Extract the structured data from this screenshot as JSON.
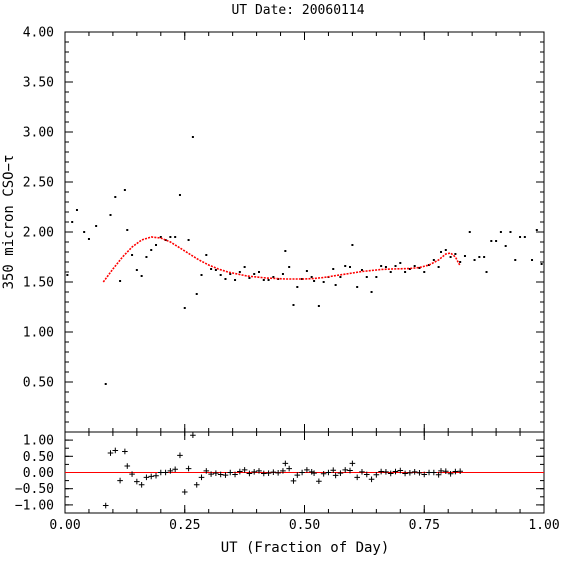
{
  "chart_data": {
    "type": "scatter",
    "title": "UT Date: 20060114",
    "xlabel": "UT (Fraction of Day)",
    "ylabel_top": "350 micron CSO−τ",
    "ylabel_bottom": "",
    "xlim": [
      0,
      1
    ],
    "ylim_top": [
      0,
      4
    ],
    "ylim_bottom": [
      -1.25,
      1.25
    ],
    "x_ticks": [
      "0.00",
      "0.25",
      "0.50",
      "0.75",
      "1.00"
    ],
    "y_ticks_top": [
      "0.50",
      "1.00",
      "1.50",
      "2.00",
      "2.50",
      "3.00",
      "3.50",
      "4.00"
    ],
    "y_ticks_bottom": [
      "−1.00",
      "−0.50",
      "0.00",
      "0.50",
      "1.00"
    ],
    "fit_color": "#ff0000",
    "point_color": "#000000",
    "tau_points": [
      {
        "x": 0.005,
        "y": 1.57
      },
      {
        "x": 0.015,
        "y": 2.1
      },
      {
        "x": 0.025,
        "y": 2.22
      },
      {
        "x": 0.04,
        "y": 2.0
      },
      {
        "x": 0.05,
        "y": 1.93
      },
      {
        "x": 0.065,
        "y": 2.06
      },
      {
        "x": 0.085,
        "y": 0.48
      },
      {
        "x": 0.095,
        "y": 2.17
      },
      {
        "x": 0.105,
        "y": 2.35
      },
      {
        "x": 0.115,
        "y": 1.51
      },
      {
        "x": 0.125,
        "y": 2.42
      },
      {
        "x": 0.13,
        "y": 2.02
      },
      {
        "x": 0.14,
        "y": 1.77
      },
      {
        "x": 0.15,
        "y": 1.62
      },
      {
        "x": 0.16,
        "y": 1.56
      },
      {
        "x": 0.17,
        "y": 1.75
      },
      {
        "x": 0.18,
        "y": 1.82
      },
      {
        "x": 0.19,
        "y": 1.87
      },
      {
        "x": 0.2,
        "y": 1.95
      },
      {
        "x": 0.21,
        "y": 1.92
      },
      {
        "x": 0.22,
        "y": 1.95
      },
      {
        "x": 0.23,
        "y": 1.95
      },
      {
        "x": 0.24,
        "y": 2.37
      },
      {
        "x": 0.25,
        "y": 1.24
      },
      {
        "x": 0.258,
        "y": 1.92
      },
      {
        "x": 0.267,
        "y": 2.95
      },
      {
        "x": 0.275,
        "y": 1.38
      },
      {
        "x": 0.285,
        "y": 1.57
      },
      {
        "x": 0.295,
        "y": 1.77
      },
      {
        "x": 0.305,
        "y": 1.63
      },
      {
        "x": 0.315,
        "y": 1.62
      },
      {
        "x": 0.325,
        "y": 1.57
      },
      {
        "x": 0.335,
        "y": 1.53
      },
      {
        "x": 0.345,
        "y": 1.58
      },
      {
        "x": 0.355,
        "y": 1.52
      },
      {
        "x": 0.365,
        "y": 1.6
      },
      {
        "x": 0.375,
        "y": 1.65
      },
      {
        "x": 0.385,
        "y": 1.54
      },
      {
        "x": 0.395,
        "y": 1.58
      },
      {
        "x": 0.405,
        "y": 1.6
      },
      {
        "x": 0.415,
        "y": 1.52
      },
      {
        "x": 0.425,
        "y": 1.52
      },
      {
        "x": 0.435,
        "y": 1.55
      },
      {
        "x": 0.445,
        "y": 1.53
      },
      {
        "x": 0.455,
        "y": 1.58
      },
      {
        "x": 0.46,
        "y": 1.81
      },
      {
        "x": 0.468,
        "y": 1.65
      },
      {
        "x": 0.477,
        "y": 1.27
      },
      {
        "x": 0.485,
        "y": 1.45
      },
      {
        "x": 0.495,
        "y": 1.53
      },
      {
        "x": 0.505,
        "y": 1.61
      },
      {
        "x": 0.515,
        "y": 1.55
      },
      {
        "x": 0.52,
        "y": 1.51
      },
      {
        "x": 0.53,
        "y": 1.26
      },
      {
        "x": 0.54,
        "y": 1.5
      },
      {
        "x": 0.55,
        "y": 1.55
      },
      {
        "x": 0.56,
        "y": 1.63
      },
      {
        "x": 0.565,
        "y": 1.47
      },
      {
        "x": 0.575,
        "y": 1.55
      },
      {
        "x": 0.585,
        "y": 1.66
      },
      {
        "x": 0.595,
        "y": 1.65
      },
      {
        "x": 0.6,
        "y": 1.87
      },
      {
        "x": 0.61,
        "y": 1.45
      },
      {
        "x": 0.62,
        "y": 1.62
      },
      {
        "x": 0.63,
        "y": 1.55
      },
      {
        "x": 0.64,
        "y": 1.4
      },
      {
        "x": 0.65,
        "y": 1.55
      },
      {
        "x": 0.66,
        "y": 1.66
      },
      {
        "x": 0.67,
        "y": 1.65
      },
      {
        "x": 0.68,
        "y": 1.6
      },
      {
        "x": 0.69,
        "y": 1.66
      },
      {
        "x": 0.7,
        "y": 1.69
      },
      {
        "x": 0.71,
        "y": 1.6
      },
      {
        "x": 0.72,
        "y": 1.63
      },
      {
        "x": 0.73,
        "y": 1.66
      },
      {
        "x": 0.74,
        "y": 1.64
      },
      {
        "x": 0.75,
        "y": 1.6
      },
      {
        "x": 0.76,
        "y": 1.67
      },
      {
        "x": 0.77,
        "y": 1.72
      },
      {
        "x": 0.78,
        "y": 1.65
      },
      {
        "x": 0.785,
        "y": 1.8
      },
      {
        "x": 0.795,
        "y": 1.82
      },
      {
        "x": 0.805,
        "y": 1.75
      },
      {
        "x": 0.815,
        "y": 1.78
      },
      {
        "x": 0.825,
        "y": 1.7
      },
      {
        "x": 0.835,
        "y": 1.76
      },
      {
        "x": 0.845,
        "y": 2.0
      },
      {
        "x": 0.855,
        "y": 1.72
      },
      {
        "x": 0.865,
        "y": 1.75
      },
      {
        "x": 0.875,
        "y": 1.75
      },
      {
        "x": 0.88,
        "y": 1.6
      },
      {
        "x": 0.89,
        "y": 1.91
      },
      {
        "x": 0.9,
        "y": 1.91
      },
      {
        "x": 0.91,
        "y": 2.0
      },
      {
        "x": 0.92,
        "y": 1.86
      },
      {
        "x": 0.93,
        "y": 2.0
      },
      {
        "x": 0.94,
        "y": 1.72
      },
      {
        "x": 0.95,
        "y": 1.95
      },
      {
        "x": 0.96,
        "y": 1.95
      },
      {
        "x": 0.975,
        "y": 1.72
      },
      {
        "x": 0.985,
        "y": 2.02
      },
      {
        "x": 0.995,
        "y": 1.68
      }
    ],
    "fit_curve": [
      {
        "x": 0.08,
        "y": 1.5
      },
      {
        "x": 0.1,
        "y": 1.63
      },
      {
        "x": 0.12,
        "y": 1.75
      },
      {
        "x": 0.14,
        "y": 1.85
      },
      {
        "x": 0.16,
        "y": 1.92
      },
      {
        "x": 0.18,
        "y": 1.95
      },
      {
        "x": 0.2,
        "y": 1.94
      },
      {
        "x": 0.22,
        "y": 1.9
      },
      {
        "x": 0.24,
        "y": 1.84
      },
      {
        "x": 0.26,
        "y": 1.78
      },
      {
        "x": 0.28,
        "y": 1.72
      },
      {
        "x": 0.3,
        "y": 1.67
      },
      {
        "x": 0.32,
        "y": 1.63
      },
      {
        "x": 0.34,
        "y": 1.6
      },
      {
        "x": 0.36,
        "y": 1.58
      },
      {
        "x": 0.38,
        "y": 1.56
      },
      {
        "x": 0.4,
        "y": 1.55
      },
      {
        "x": 0.42,
        "y": 1.54
      },
      {
        "x": 0.44,
        "y": 1.535
      },
      {
        "x": 0.46,
        "y": 1.53
      },
      {
        "x": 0.48,
        "y": 1.53
      },
      {
        "x": 0.5,
        "y": 1.53
      },
      {
        "x": 0.52,
        "y": 1.535
      },
      {
        "x": 0.54,
        "y": 1.545
      },
      {
        "x": 0.56,
        "y": 1.56
      },
      {
        "x": 0.58,
        "y": 1.575
      },
      {
        "x": 0.6,
        "y": 1.59
      },
      {
        "x": 0.62,
        "y": 1.605
      },
      {
        "x": 0.64,
        "y": 1.615
      },
      {
        "x": 0.66,
        "y": 1.625
      },
      {
        "x": 0.68,
        "y": 1.63
      },
      {
        "x": 0.7,
        "y": 1.632
      },
      {
        "x": 0.72,
        "y": 1.635
      },
      {
        "x": 0.74,
        "y": 1.645
      },
      {
        "x": 0.76,
        "y": 1.67
      },
      {
        "x": 0.78,
        "y": 1.72
      },
      {
        "x": 0.795,
        "y": 1.78
      },
      {
        "x": 0.805,
        "y": 1.79
      },
      {
        "x": 0.815,
        "y": 1.75
      },
      {
        "x": 0.825,
        "y": 1.66
      }
    ],
    "residuals": [
      {
        "x": 0.085,
        "y": -1.02
      },
      {
        "x": 0.095,
        "y": 0.6
      },
      {
        "x": 0.105,
        "y": 0.68
      },
      {
        "x": 0.115,
        "y": -0.25
      },
      {
        "x": 0.125,
        "y": 0.65
      },
      {
        "x": 0.13,
        "y": 0.2
      },
      {
        "x": 0.14,
        "y": -0.05
      },
      {
        "x": 0.15,
        "y": -0.28
      },
      {
        "x": 0.16,
        "y": -0.38
      },
      {
        "x": 0.17,
        "y": -0.15
      },
      {
        "x": 0.18,
        "y": -0.12
      },
      {
        "x": 0.19,
        "y": -0.1
      },
      {
        "x": 0.2,
        "y": 0.0
      },
      {
        "x": 0.21,
        "y": 0.0
      },
      {
        "x": 0.22,
        "y": 0.05
      },
      {
        "x": 0.23,
        "y": 0.1
      },
      {
        "x": 0.24,
        "y": 0.53
      },
      {
        "x": 0.25,
        "y": -0.6
      },
      {
        "x": 0.258,
        "y": 0.12
      },
      {
        "x": 0.267,
        "y": 1.15
      },
      {
        "x": 0.275,
        "y": -0.38
      },
      {
        "x": 0.285,
        "y": -0.15
      },
      {
        "x": 0.295,
        "y": 0.05
      },
      {
        "x": 0.305,
        "y": -0.05
      },
      {
        "x": 0.315,
        "y": -0.02
      },
      {
        "x": 0.325,
        "y": -0.06
      },
      {
        "x": 0.335,
        "y": -0.08
      },
      {
        "x": 0.345,
        "y": 0.0
      },
      {
        "x": 0.355,
        "y": -0.06
      },
      {
        "x": 0.365,
        "y": 0.03
      },
      {
        "x": 0.375,
        "y": 0.08
      },
      {
        "x": 0.385,
        "y": -0.03
      },
      {
        "x": 0.395,
        "y": 0.02
      },
      {
        "x": 0.405,
        "y": 0.05
      },
      {
        "x": 0.415,
        "y": -0.03
      },
      {
        "x": 0.425,
        "y": -0.02
      },
      {
        "x": 0.435,
        "y": 0.01
      },
      {
        "x": 0.445,
        "y": -0.01
      },
      {
        "x": 0.455,
        "y": 0.05
      },
      {
        "x": 0.46,
        "y": 0.28
      },
      {
        "x": 0.468,
        "y": 0.12
      },
      {
        "x": 0.477,
        "y": -0.26
      },
      {
        "x": 0.485,
        "y": -0.08
      },
      {
        "x": 0.495,
        "y": 0.0
      },
      {
        "x": 0.505,
        "y": 0.08
      },
      {
        "x": 0.515,
        "y": 0.02
      },
      {
        "x": 0.52,
        "y": -0.02
      },
      {
        "x": 0.53,
        "y": -0.27
      },
      {
        "x": 0.54,
        "y": -0.04
      },
      {
        "x": 0.55,
        "y": 0.0
      },
      {
        "x": 0.56,
        "y": 0.07
      },
      {
        "x": 0.565,
        "y": -0.09
      },
      {
        "x": 0.575,
        "y": -0.02
      },
      {
        "x": 0.585,
        "y": 0.08
      },
      {
        "x": 0.595,
        "y": 0.06
      },
      {
        "x": 0.6,
        "y": 0.28
      },
      {
        "x": 0.61,
        "y": -0.15
      },
      {
        "x": 0.62,
        "y": 0.02
      },
      {
        "x": 0.63,
        "y": -0.06
      },
      {
        "x": 0.64,
        "y": -0.21
      },
      {
        "x": 0.65,
        "y": -0.07
      },
      {
        "x": 0.66,
        "y": 0.03
      },
      {
        "x": 0.67,
        "y": 0.02
      },
      {
        "x": 0.68,
        "y": -0.03
      },
      {
        "x": 0.69,
        "y": 0.03
      },
      {
        "x": 0.7,
        "y": 0.06
      },
      {
        "x": 0.71,
        "y": -0.03
      },
      {
        "x": 0.72,
        "y": -0.01
      },
      {
        "x": 0.73,
        "y": 0.02
      },
      {
        "x": 0.74,
        "y": -0.01
      },
      {
        "x": 0.75,
        "y": -0.06
      },
      {
        "x": 0.76,
        "y": 0.0
      },
      {
        "x": 0.77,
        "y": 0.0
      },
      {
        "x": 0.78,
        "y": -0.07
      },
      {
        "x": 0.785,
        "y": 0.05
      },
      {
        "x": 0.795,
        "y": 0.04
      },
      {
        "x": 0.805,
        "y": -0.04
      },
      {
        "x": 0.815,
        "y": 0.03
      },
      {
        "x": 0.825,
        "y": 0.04
      }
    ]
  }
}
